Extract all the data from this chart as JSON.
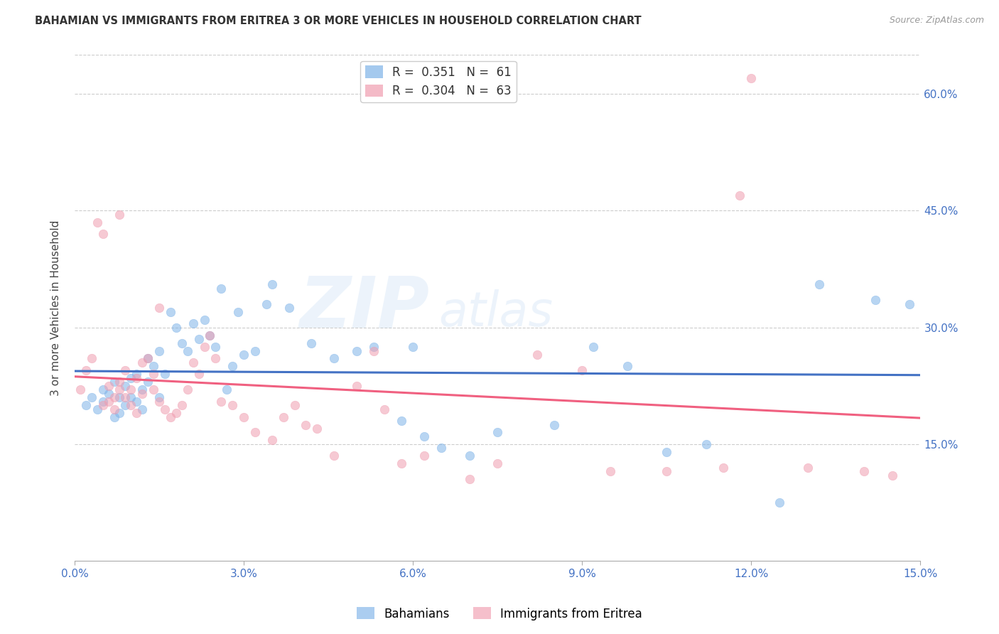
{
  "title": "BAHAMIAN VS IMMIGRANTS FROM ERITREA 3 OR MORE VEHICLES IN HOUSEHOLD CORRELATION CHART",
  "source": "Source: ZipAtlas.com",
  "ylabel": "3 or more Vehicles in Household",
  "x_min": 0.0,
  "x_max": 15.0,
  "y_min": 0.0,
  "y_max": 65.0,
  "x_ticks": [
    0.0,
    3.0,
    6.0,
    9.0,
    12.0,
    15.0
  ],
  "y_ticks": [
    15.0,
    30.0,
    45.0,
    60.0
  ],
  "blue_color": "#7EB3E8",
  "pink_color": "#F09DB0",
  "blue_line_color": "#4472C4",
  "pink_line_color": "#F06080",
  "blue_R": 0.351,
  "blue_N": 61,
  "pink_R": 0.304,
  "pink_N": 63,
  "blue_label": "Bahamians",
  "pink_label": "Immigrants from Eritrea",
  "watermark_text": "ZIP",
  "watermark_text2": "atlas",
  "axis_label_color": "#4472C4",
  "background_color": "#FFFFFF",
  "blue_scatter_x": [
    0.2,
    0.3,
    0.4,
    0.5,
    0.5,
    0.6,
    0.7,
    0.7,
    0.8,
    0.8,
    0.9,
    0.9,
    1.0,
    1.0,
    1.1,
    1.1,
    1.2,
    1.2,
    1.3,
    1.3,
    1.4,
    1.5,
    1.5,
    1.6,
    1.7,
    1.8,
    1.9,
    2.0,
    2.1,
    2.2,
    2.3,
    2.4,
    2.5,
    2.6,
    2.7,
    2.8,
    2.9,
    3.0,
    3.2,
    3.4,
    3.5,
    3.8,
    4.2,
    4.6,
    5.0,
    5.3,
    5.8,
    6.0,
    6.2,
    6.5,
    7.0,
    7.5,
    8.5,
    9.2,
    9.8,
    10.5,
    11.2,
    12.5,
    13.2,
    14.2,
    14.8
  ],
  "blue_scatter_y": [
    20.0,
    21.0,
    19.5,
    22.0,
    20.5,
    21.5,
    18.5,
    23.0,
    19.0,
    21.0,
    20.0,
    22.5,
    21.0,
    23.5,
    20.5,
    24.0,
    22.0,
    19.5,
    23.0,
    26.0,
    25.0,
    21.0,
    27.0,
    24.0,
    32.0,
    30.0,
    28.0,
    27.0,
    30.5,
    28.5,
    31.0,
    29.0,
    27.5,
    35.0,
    22.0,
    25.0,
    32.0,
    26.5,
    27.0,
    33.0,
    35.5,
    32.5,
    28.0,
    26.0,
    27.0,
    27.5,
    18.0,
    27.5,
    16.0,
    14.5,
    13.5,
    16.5,
    17.5,
    27.5,
    25.0,
    14.0,
    15.0,
    7.5,
    35.5,
    33.5,
    33.0
  ],
  "pink_scatter_x": [
    0.1,
    0.2,
    0.3,
    0.4,
    0.5,
    0.5,
    0.6,
    0.6,
    0.7,
    0.7,
    0.8,
    0.8,
    0.9,
    0.9,
    1.0,
    1.0,
    1.1,
    1.1,
    1.2,
    1.2,
    1.3,
    1.4,
    1.4,
    1.5,
    1.6,
    1.7,
    1.8,
    1.9,
    2.0,
    2.1,
    2.2,
    2.3,
    2.4,
    2.5,
    2.6,
    2.8,
    3.0,
    3.2,
    3.5,
    3.7,
    3.9,
    4.1,
    4.3,
    4.6,
    5.0,
    5.3,
    5.5,
    5.8,
    6.2,
    7.0,
    7.5,
    8.2,
    9.0,
    9.5,
    10.5,
    11.5,
    11.8,
    12.0,
    13.0,
    14.0,
    14.5,
    1.5,
    0.8
  ],
  "pink_scatter_y": [
    22.0,
    24.5,
    26.0,
    43.5,
    42.0,
    20.0,
    20.5,
    22.5,
    21.0,
    19.5,
    23.0,
    22.0,
    24.5,
    21.0,
    20.0,
    22.0,
    23.5,
    19.0,
    25.5,
    21.5,
    26.0,
    24.0,
    22.0,
    20.5,
    19.5,
    18.5,
    19.0,
    20.0,
    22.0,
    25.5,
    24.0,
    27.5,
    29.0,
    26.0,
    20.5,
    20.0,
    18.5,
    16.5,
    15.5,
    18.5,
    20.0,
    17.5,
    17.0,
    13.5,
    22.5,
    27.0,
    19.5,
    12.5,
    13.5,
    10.5,
    12.5,
    26.5,
    24.5,
    11.5,
    11.5,
    12.0,
    47.0,
    62.0,
    12.0,
    11.5,
    11.0,
    32.5,
    44.5
  ]
}
